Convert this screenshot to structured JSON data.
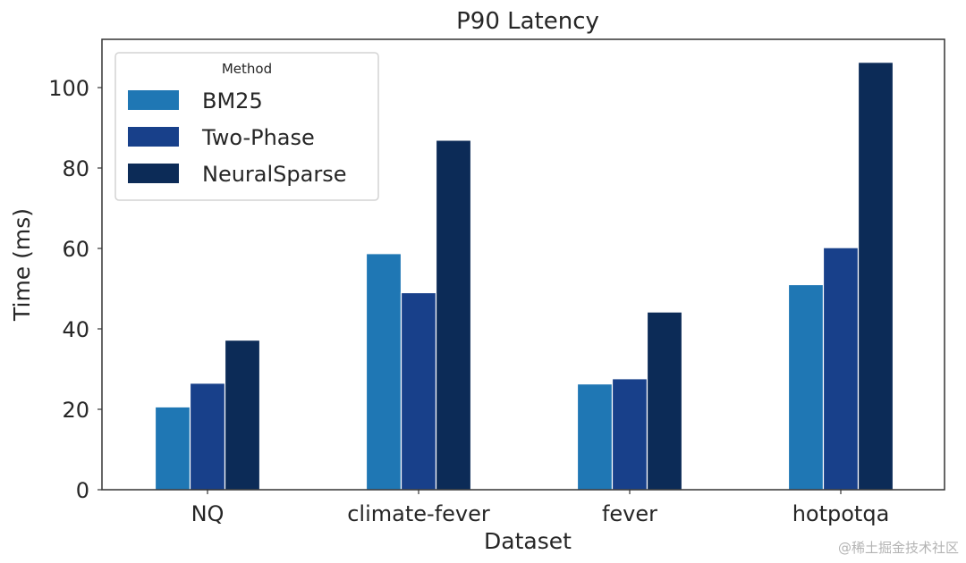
{
  "chart_data": {
    "type": "bar",
    "title": "P90 Latency",
    "xlabel": "Dataset",
    "ylabel": "Time (ms)",
    "categories": [
      "NQ",
      "climate-fever",
      "fever",
      "hotpotqa"
    ],
    "ylim": [
      0,
      112
    ],
    "yticks": [
      0,
      20,
      40,
      60,
      80,
      100
    ],
    "grid": false,
    "legend": {
      "title": "Method",
      "position": "top-left"
    },
    "series": [
      {
        "name": "BM25",
        "color": "#1f77b4",
        "values": [
          20.6,
          58.7,
          26.3,
          51.0
        ]
      },
      {
        "name": "Two-Phase",
        "color": "#18408a",
        "values": [
          26.5,
          49.0,
          27.6,
          60.2
        ]
      },
      {
        "name": "NeuralSparse",
        "color": "#0c2b57",
        "values": [
          37.2,
          86.9,
          44.2,
          106.3
        ]
      }
    ]
  },
  "watermark": "@稀土掘金技术社区"
}
